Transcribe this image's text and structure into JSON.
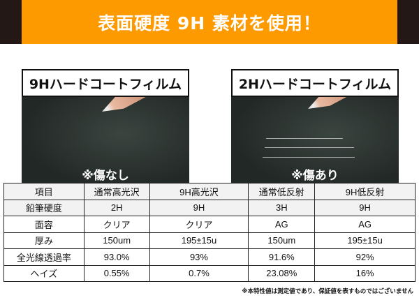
{
  "banner": {
    "title": "表面硬度 9H 素材を使用！",
    "colors": {
      "orange": "#fd9a00",
      "side": "#231815"
    }
  },
  "panels": [
    {
      "label": "9Hハードコートフィルム",
      "caption": "※傷なし"
    },
    {
      "label": "2Hハードコートフィルム",
      "caption": "※傷あり"
    }
  ],
  "table": {
    "headers": [
      "項目",
      "通常高光沢",
      "9H高光沢",
      "通常低反射",
      "9H低反射"
    ],
    "rows": [
      [
        "鉛筆硬度",
        "2H",
        "9H",
        "3H",
        "9H"
      ],
      [
        "面容",
        "クリア",
        "クリア",
        "AG",
        "AG"
      ],
      [
        "厚み",
        "150um",
        "195±15u",
        "150um",
        "195±15u"
      ],
      [
        "全光線透過率",
        "93.0%",
        "93%",
        "91.6%",
        "92%"
      ],
      [
        "ヘイズ",
        "0.55%",
        "0.7%",
        "23.08%",
        "16%"
      ]
    ]
  },
  "note": "※本特性値は測定値であり、保証値を表すものではございません"
}
